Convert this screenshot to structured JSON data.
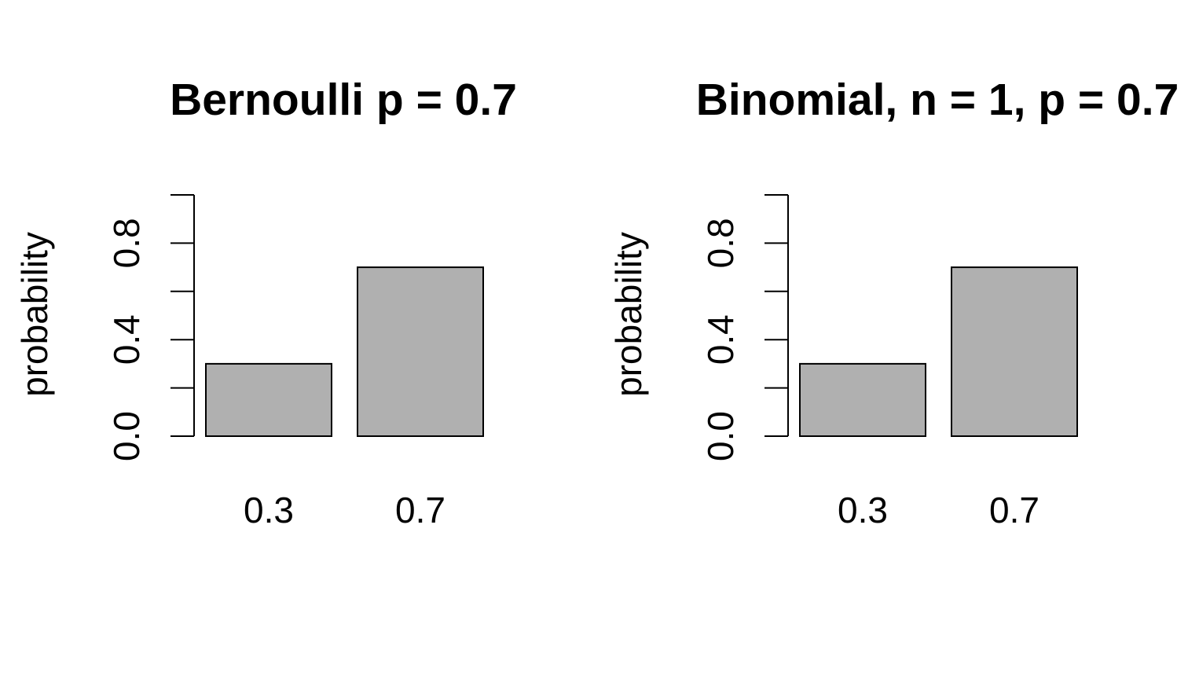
{
  "chart_data": [
    {
      "type": "bar",
      "title": "Bernoulli p = 0.7",
      "xlabel": "",
      "ylabel": "probability",
      "categories": [
        "0.3",
        "0.7"
      ],
      "values": [
        0.3,
        0.7
      ],
      "ylim": [
        0,
        1
      ],
      "yticks": [
        0.0,
        0.2,
        0.4,
        0.6,
        0.8,
        1.0
      ],
      "ytick_labels": [
        "0.0",
        "",
        "0.4",
        "",
        "0.8",
        ""
      ],
      "bar_color": "#b0b0b0",
      "bar_border_color": "#000000",
      "grid": false,
      "legend": false
    },
    {
      "type": "bar",
      "title": "Binomial, n = 1, p = 0.7",
      "xlabel": "",
      "ylabel": "probability",
      "categories": [
        "0.3",
        "0.7"
      ],
      "values": [
        0.3,
        0.7
      ],
      "ylim": [
        0,
        1
      ],
      "yticks": [
        0.0,
        0.2,
        0.4,
        0.6,
        0.8,
        1.0
      ],
      "ytick_labels": [
        "0.0",
        "",
        "0.4",
        "",
        "0.8",
        ""
      ],
      "bar_color": "#b0b0b0",
      "bar_border_color": "#000000",
      "grid": false,
      "legend": false
    }
  ]
}
